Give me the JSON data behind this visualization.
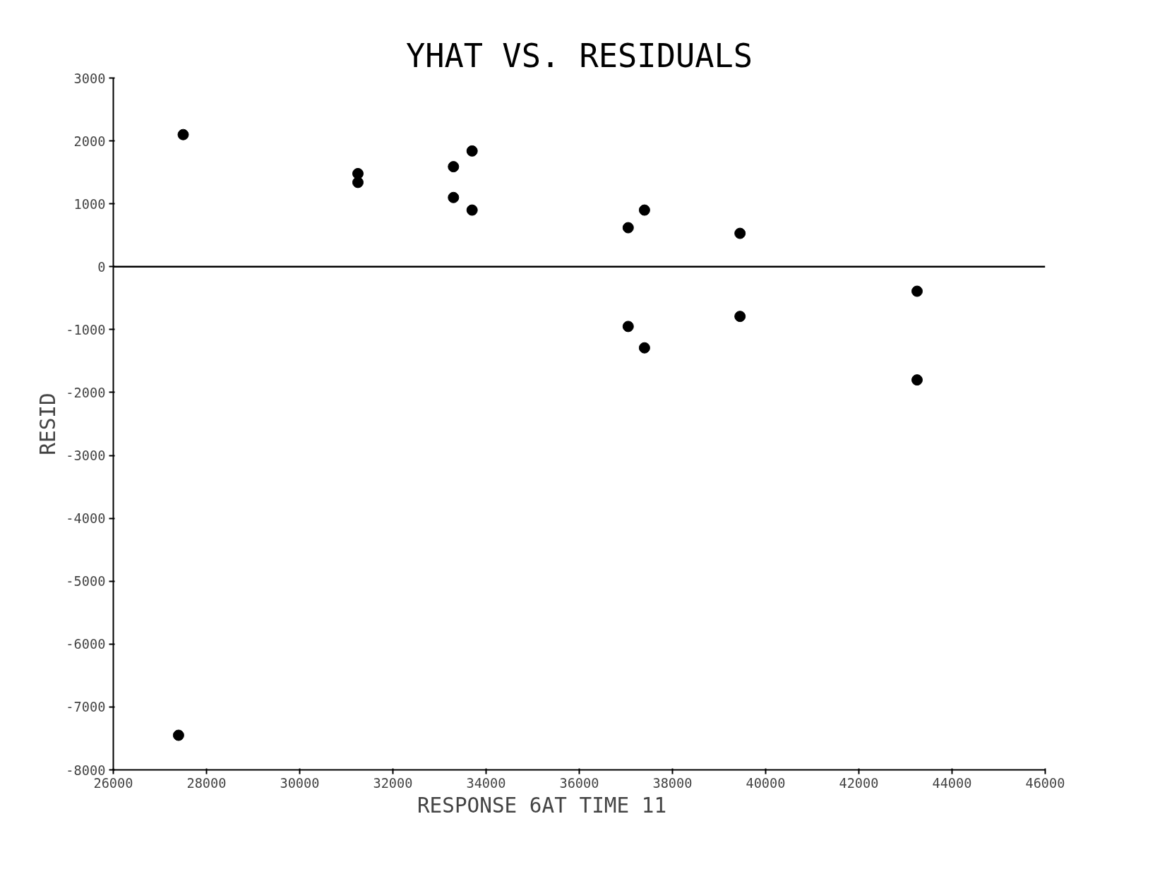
{
  "chart_data": {
    "type": "scatter",
    "title": "YHAT VS. RESIDUALS",
    "xlabel": "RESPONSE    6AT TIME    11",
    "ylabel": "RESID",
    "x": [
      27500,
      31250,
      31250,
      33300,
      33700,
      33300,
      33700,
      37050,
      37400,
      39450,
      37050,
      37400,
      39450,
      43250,
      43250,
      27400
    ],
    "series": [
      {
        "color": "#000000",
        "values": [
          2100,
          1480,
          1340,
          1590,
          1840,
          1100,
          900,
          620,
          900,
          530,
          -950,
          -1290,
          -790,
          -390,
          -1800,
          -7450
        ]
      }
    ],
    "xlim": [
      26000,
      46000
    ],
    "xticks": [
      26000,
      28000,
      30000,
      32000,
      34000,
      36000,
      38000,
      40000,
      42000,
      44000,
      46000
    ],
    "ylim": [
      -8000,
      3000
    ],
    "yticks": [
      -8000,
      -7000,
      -6000,
      -5000,
      -4000,
      -3000,
      -2000,
      -1000,
      0,
      1000,
      2000,
      3000
    ],
    "ref_lines": [
      {
        "axis": "y",
        "value": 0,
        "color": "#000000"
      }
    ],
    "marker": "circle",
    "grid": false
  }
}
